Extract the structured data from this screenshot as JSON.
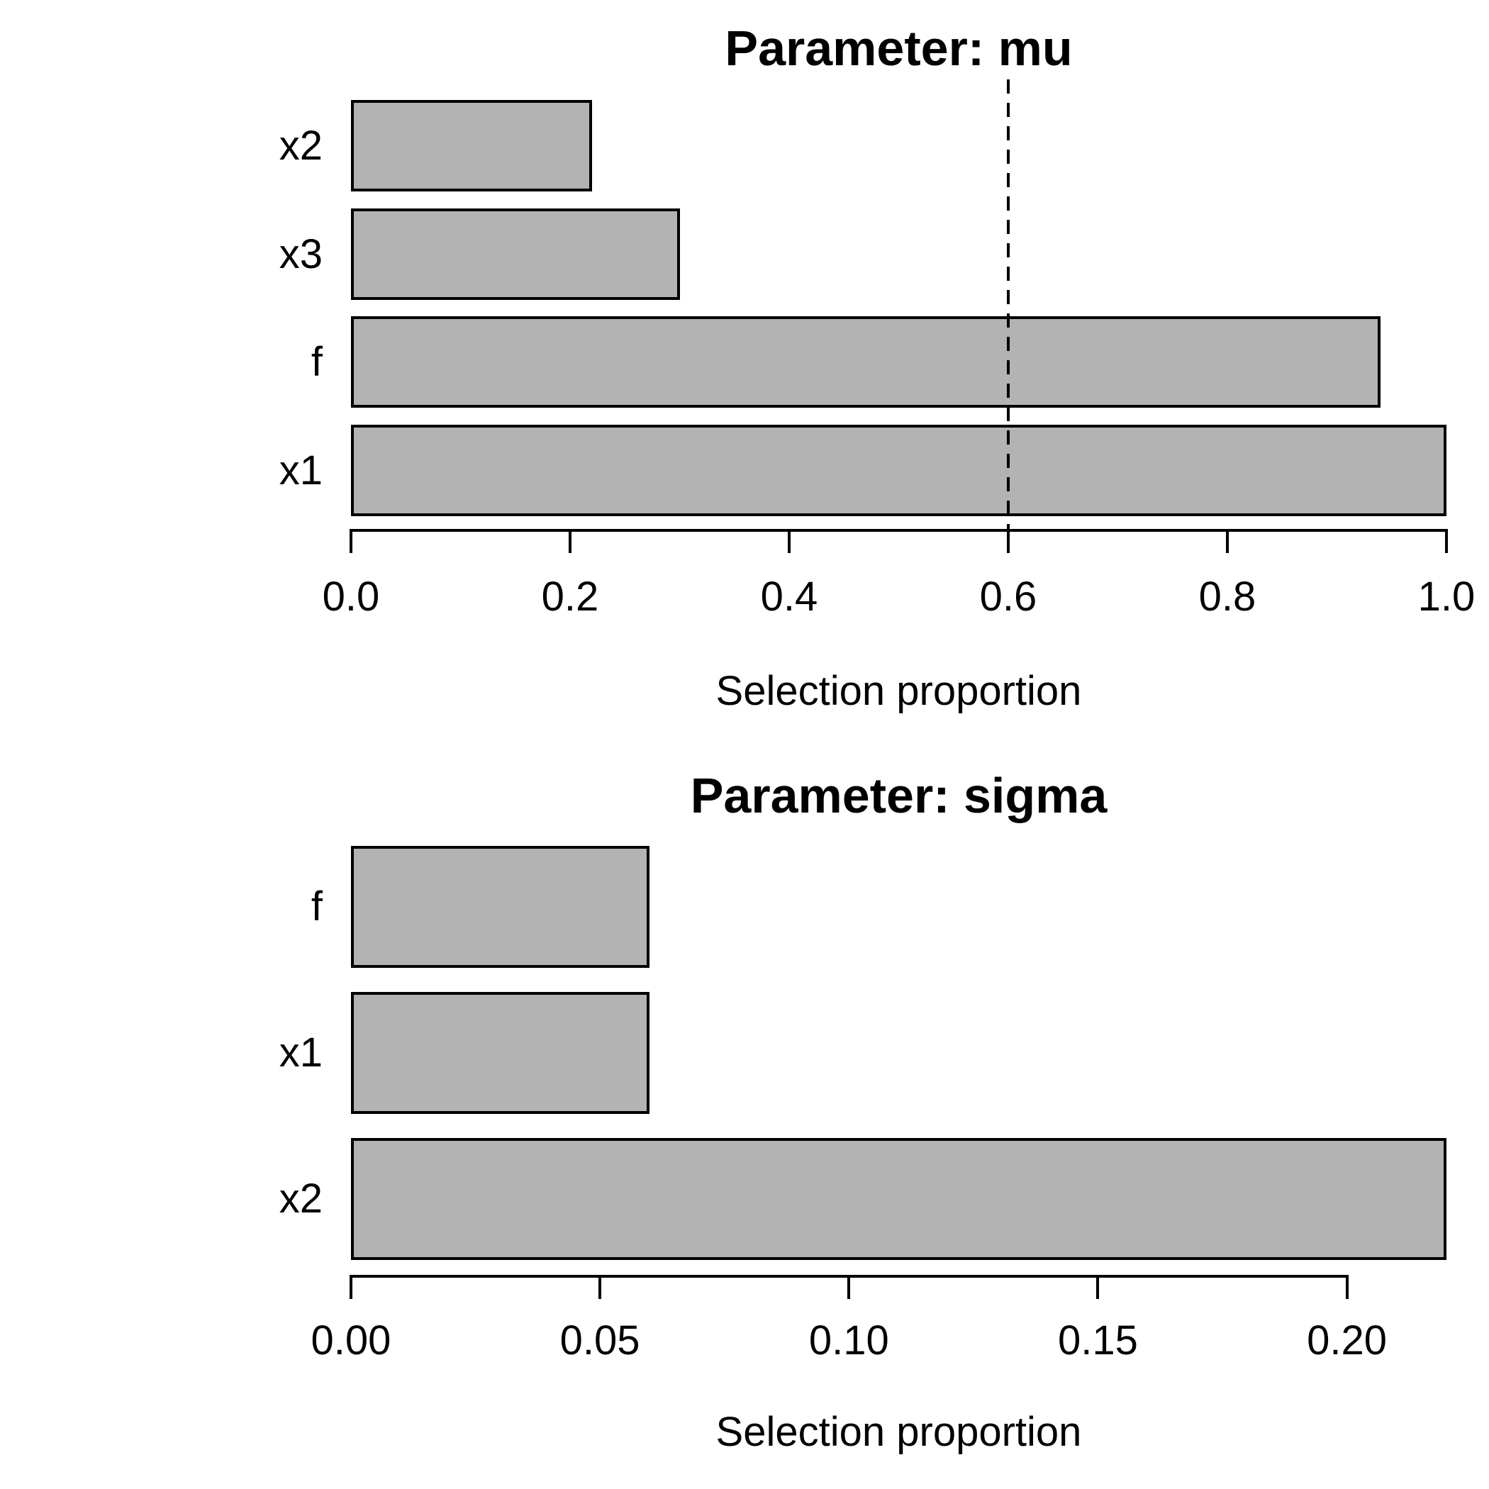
{
  "figure": {
    "background": "#ffffff",
    "bar_fill": "#b3b3b3",
    "bar_border": "#000000",
    "text_color": "#000000"
  },
  "chart_data": [
    {
      "type": "bar",
      "orientation": "horizontal",
      "title": "Parameter: mu",
      "xlabel": "Selection proportion",
      "categories": [
        "x2",
        "x3",
        "f",
        "x1"
      ],
      "values": [
        0.22,
        0.3,
        0.94,
        1.0
      ],
      "xlim": [
        0,
        1.0
      ],
      "xticks": {
        "labels": [
          "0.0",
          "0.2",
          "0.4",
          "0.6",
          "0.8",
          "1.0"
        ],
        "values": [
          0,
          0.2,
          0.4,
          0.6,
          0.8,
          1.0
        ]
      },
      "reference_line": {
        "value": 0.6,
        "style": "dashed"
      },
      "grid": false,
      "legend": null
    },
    {
      "type": "bar",
      "orientation": "horizontal",
      "title": "Parameter: sigma",
      "xlabel": "Selection proportion",
      "categories": [
        "f",
        "x1",
        "x2"
      ],
      "values": [
        0.06,
        0.06,
        0.22
      ],
      "xlim": [
        0,
        0.22
      ],
      "xticks": {
        "labels": [
          "0.00",
          "0.05",
          "0.10",
          "0.15",
          "0.20"
        ],
        "values": [
          0,
          0.05,
          0.1,
          0.15,
          0.2
        ]
      },
      "reference_line": null,
      "grid": false,
      "legend": null
    }
  ]
}
